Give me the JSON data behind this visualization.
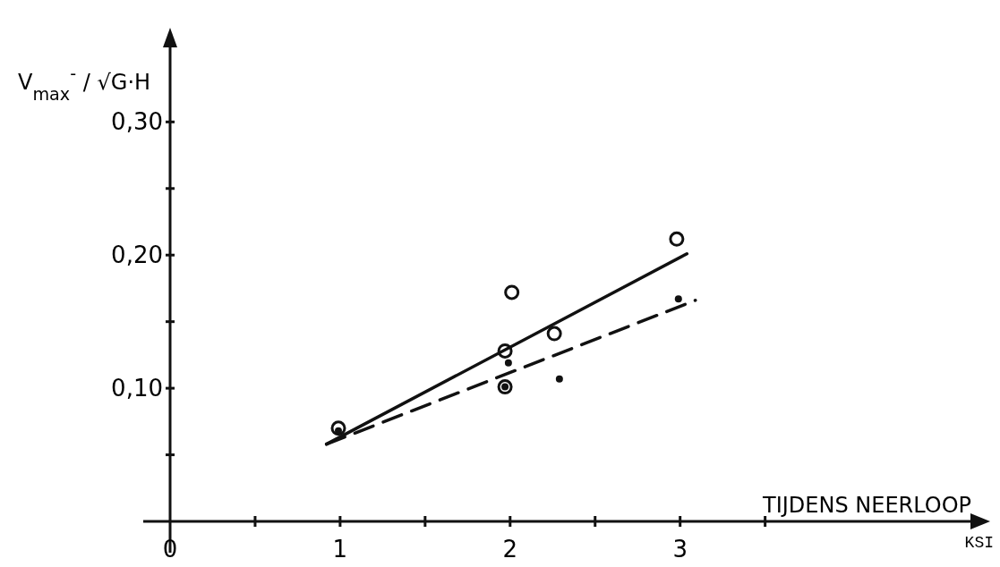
{
  "chart_data": {
    "type": "scatter",
    "ylabel": "V$_{max}$$^{-}$ / √G·H",
    "xlabel": "KSI",
    "annotations": [
      "TIJDENS NEERLOOP"
    ],
    "xlim": [
      0,
      4.75
    ],
    "ylim": [
      0,
      0.36
    ],
    "xticks": [
      0,
      {
        "value": 0.5,
        "label": null
      },
      1,
      {
        "value": 1.5,
        "label": null
      },
      2,
      {
        "value": 2.5,
        "label": null
      },
      3,
      {
        "value": 3.5,
        "label": null
      }
    ],
    "yticks": [
      {
        "value": 0.05,
        "label": null
      },
      {
        "value": 0.1,
        "label": "0,10"
      },
      {
        "value": 0.15,
        "label": null
      },
      {
        "value": 0.2,
        "label": "0,20"
      },
      {
        "value": 0.25,
        "label": null
      },
      {
        "value": 0.3,
        "label": "0,30"
      }
    ],
    "grid": false,
    "series": [
      {
        "marker": "circle",
        "color": "#111111",
        "x": [
          0.99,
          2.01,
          1.97,
          2.26,
          1.97,
          2.98
        ],
        "values": [
          0.07,
          0.172,
          0.128,
          0.141,
          0.101,
          0.212
        ]
      },
      {
        "marker": "circle",
        "color": "#111111",
        "x": [
          0.99,
          1.99,
          1.97,
          2.29,
          2.99
        ],
        "values": [
          0.068,
          0.119,
          0.101,
          0.107,
          0.167
        ]
      },
      {
        "type": "line",
        "marker": "none",
        "line_style": "solid",
        "color": "#111111",
        "x": [
          0.92,
          3.04
        ],
        "values": [
          0.058,
          0.201
        ]
      },
      {
        "type": "line",
        "marker": "none",
        "line_style": "dashed",
        "color": "#111111",
        "x": [
          0.92,
          3.09
        ],
        "values": [
          0.058,
          0.166
        ]
      }
    ]
  }
}
